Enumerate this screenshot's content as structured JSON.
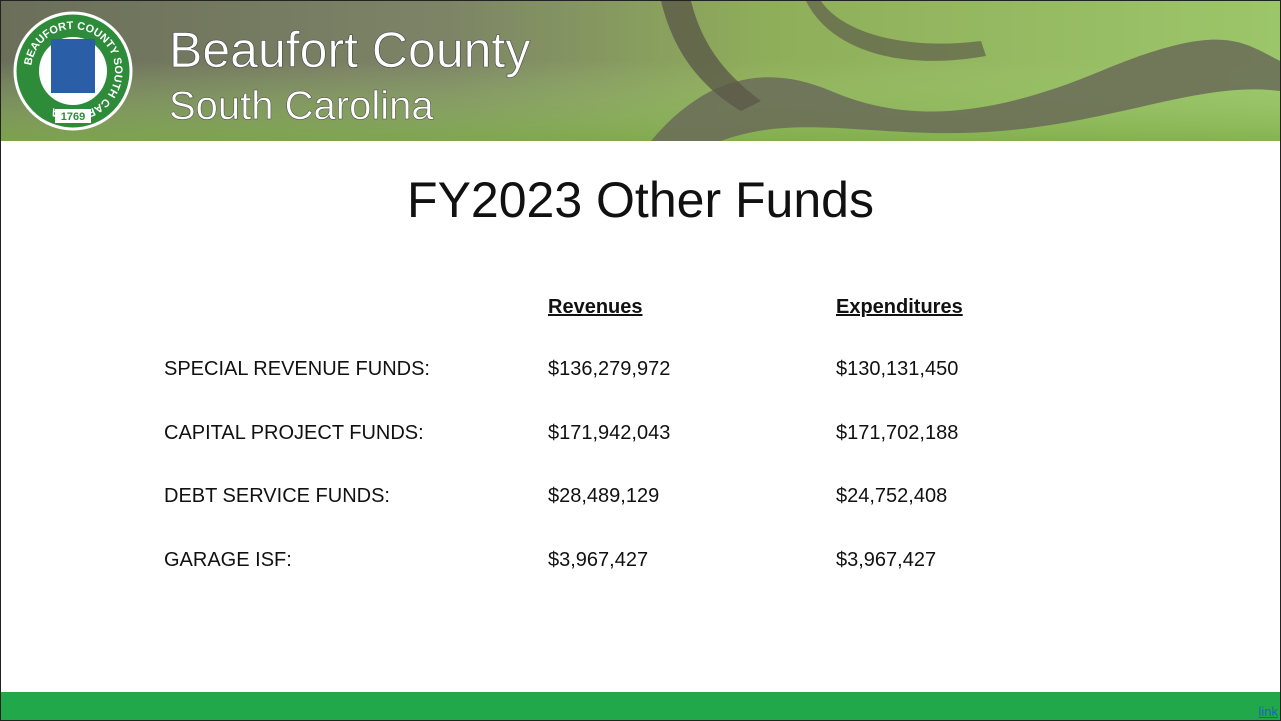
{
  "header": {
    "seal": {
      "ring_text": "BEAUFORT COUNTY SOUTH CAROLINA",
      "year": "1769"
    },
    "title": "Beaufort County",
    "subtitle": "South Carolina"
  },
  "slide": {
    "title": "FY2023 Other Funds",
    "table": {
      "columns": [
        "Revenues",
        "Expenditures"
      ],
      "rows": [
        [
          "SPECIAL REVENUE FUNDS:",
          "$136,279,972",
          "$130,131,450"
        ],
        [
          "CAPITAL PROJECT FUNDS:",
          "$171,942,043",
          "$171,702,188"
        ],
        [
          "DEBT SERVICE FUNDS:",
          "$28,489,129",
          "$24,752,408"
        ],
        [
          "GARAGE ISF:",
          "$3,967,427",
          "$3,967,427"
        ]
      ]
    }
  },
  "footer": {
    "link": "link"
  }
}
